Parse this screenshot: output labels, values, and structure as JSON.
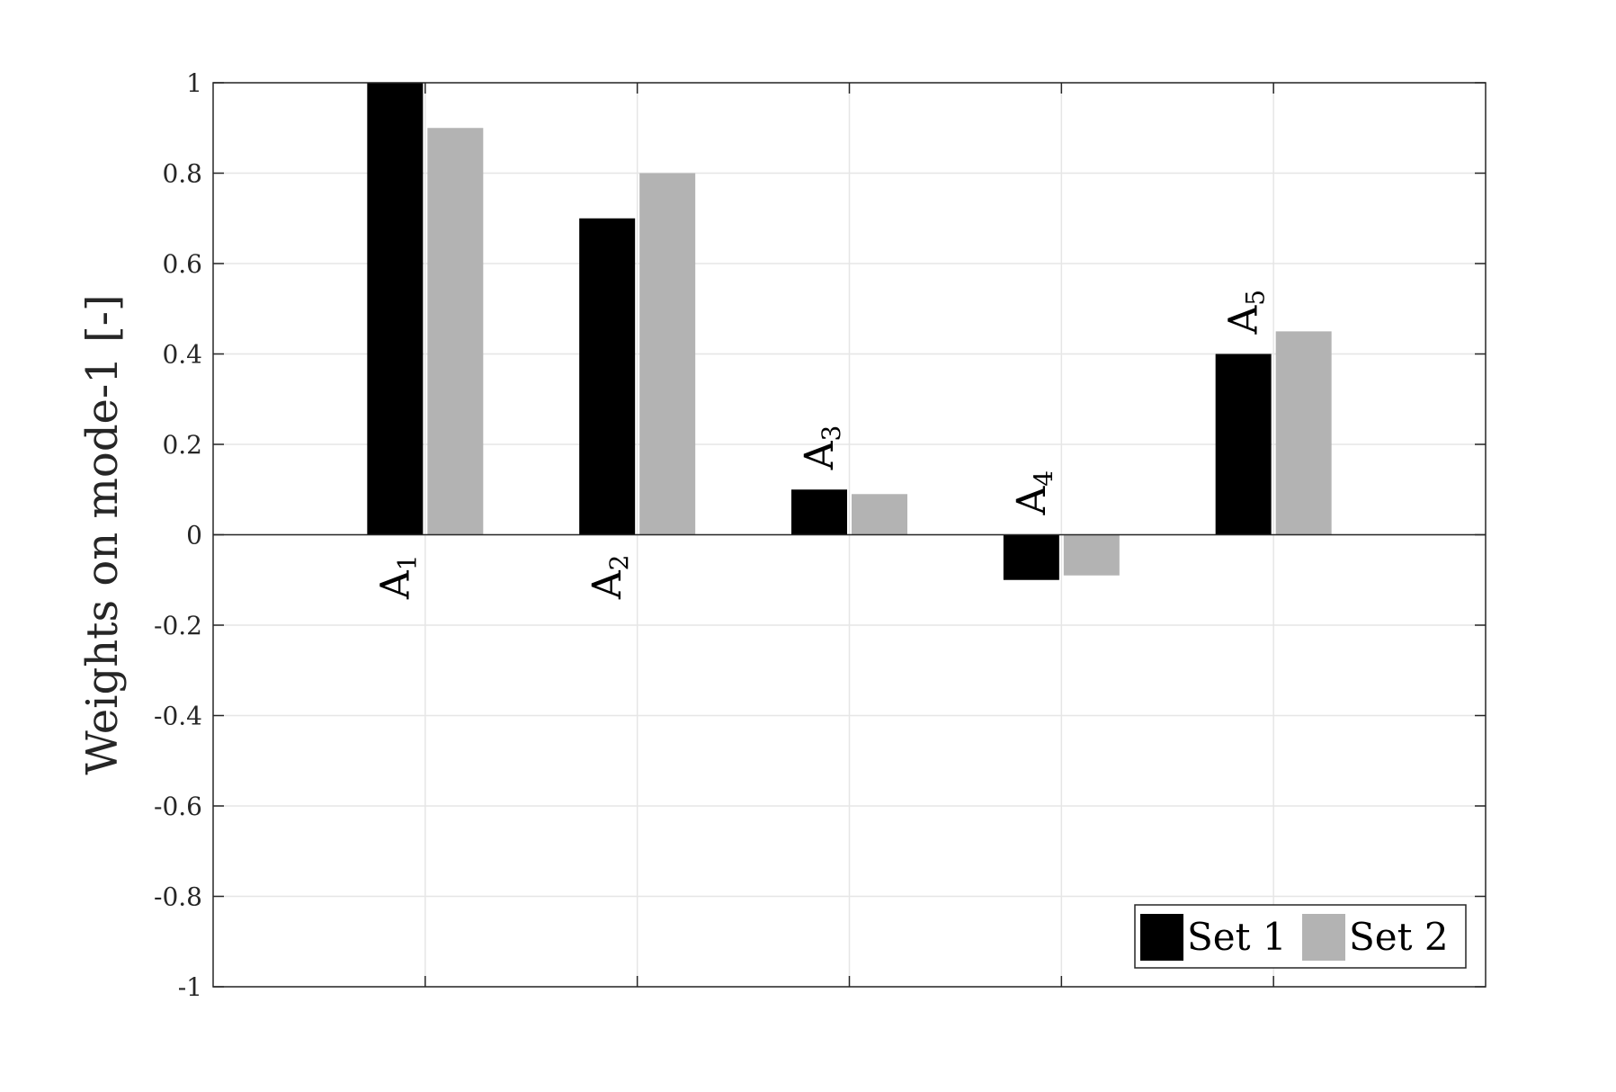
{
  "chart_data": {
    "type": "bar",
    "categories": [
      "A",
      "A",
      "A",
      "A",
      "A"
    ],
    "category_subscripts": [
      "1",
      "2",
      "3",
      "4",
      "5"
    ],
    "series": [
      {
        "name": "Set 1",
        "color": "#000000",
        "values": [
          1.0,
          0.7,
          0.1,
          -0.1,
          0.4
        ]
      },
      {
        "name": "Set 2",
        "color": "#b3b3b3",
        "values": [
          0.9,
          0.8,
          0.09,
          -0.09,
          0.45
        ]
      }
    ],
    "ylabel": "Weights on mode-1 [-]",
    "ylim": [
      -1,
      1
    ],
    "yticks": [
      1,
      0.8,
      0.6,
      0.4,
      0.2,
      0,
      -0.2,
      -0.4,
      -0.6,
      -0.8,
      -1
    ],
    "ytick_labels": [
      "1",
      "0.8",
      "0.6",
      "0.4",
      "0.2",
      "0",
      "-0.2",
      "-0.4",
      "-0.6",
      "-0.8",
      "-1"
    ],
    "grid": true,
    "legend_position": "bottom-right",
    "legend_orientation": "horizontal"
  }
}
